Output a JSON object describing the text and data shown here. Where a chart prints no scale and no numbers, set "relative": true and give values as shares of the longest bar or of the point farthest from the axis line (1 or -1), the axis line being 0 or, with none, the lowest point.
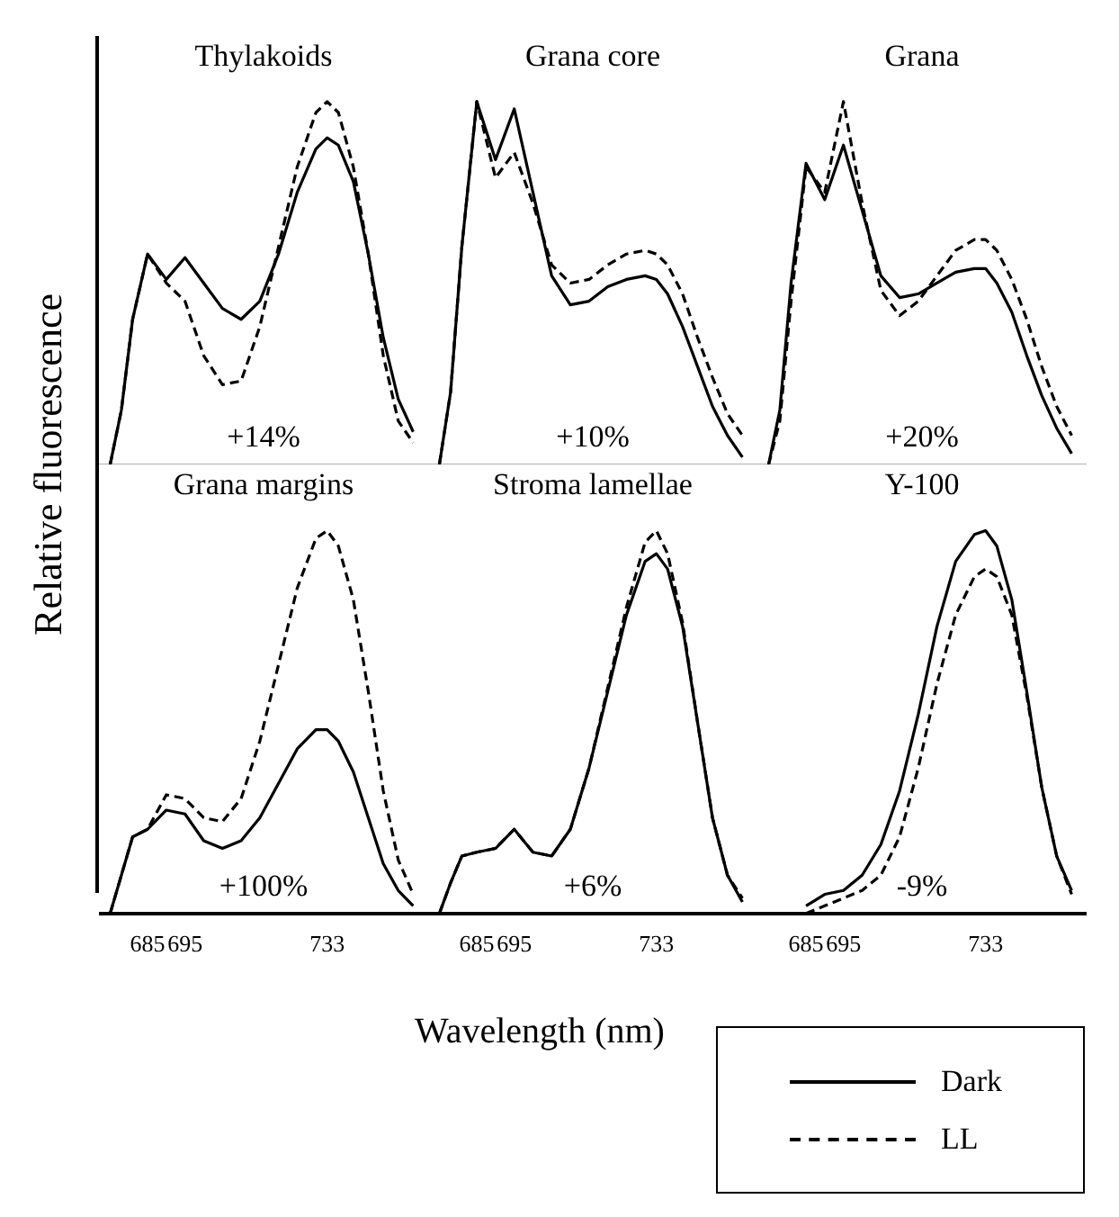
{
  "chart_data": [
    {
      "type": "line",
      "title": "Thylakoids",
      "ylabel": "Relative fluorescence",
      "annotations": [
        "+14%"
      ],
      "relative": true,
      "tick_labels": false,
      "xlim": [
        672,
        760
      ],
      "xticks": [
        685,
        695,
        733
      ],
      "x": [
        675,
        678,
        681,
        685,
        690,
        695,
        700,
        705,
        710,
        715,
        720,
        725,
        730,
        733,
        736,
        740,
        744,
        748,
        752,
        756
      ],
      "series": [
        {
          "color": "#000000",
          "line_style": "solid",
          "values": [
            0,
            0.15,
            0.4,
            0.58,
            0.51,
            0.57,
            0.5,
            0.43,
            0.4,
            0.45,
            0.58,
            0.75,
            0.87,
            0.9,
            0.88,
            0.78,
            0.58,
            0.35,
            0.18,
            0.09
          ]
        },
        {
          "color": "#000000",
          "line_style": "dashed",
          "values": [
            0,
            0.15,
            0.4,
            0.58,
            0.5,
            0.45,
            0.3,
            0.22,
            0.23,
            0.38,
            0.6,
            0.82,
            0.97,
            1,
            0.97,
            0.82,
            0.58,
            0.3,
            0.12,
            0.06
          ]
        }
      ]
    },
    {
      "type": "line",
      "title": "Grana core",
      "annotations": [
        "+10%"
      ],
      "relative": true,
      "tick_labels": false,
      "xlim": [
        672,
        760
      ],
      "xticks": [
        685,
        695,
        733
      ],
      "x": [
        675,
        678,
        681,
        685,
        690,
        695,
        700,
        705,
        710,
        715,
        720,
        725,
        730,
        733,
        736,
        740,
        744,
        748,
        752,
        756
      ],
      "series": [
        {
          "color": "#000000",
          "line_style": "solid",
          "values": [
            0,
            0.2,
            0.6,
            1,
            0.84,
            0.98,
            0.75,
            0.52,
            0.44,
            0.45,
            0.49,
            0.51,
            0.52,
            0.51,
            0.47,
            0.38,
            0.27,
            0.16,
            0.08,
            0.02
          ]
        },
        {
          "color": "#000000",
          "line_style": "dashed",
          "values": [
            0,
            0.2,
            0.6,
            1,
            0.79,
            0.86,
            0.72,
            0.55,
            0.5,
            0.51,
            0.55,
            0.58,
            0.59,
            0.58,
            0.55,
            0.47,
            0.35,
            0.24,
            0.14,
            0.08
          ]
        }
      ]
    },
    {
      "type": "line",
      "title": "Grana",
      "annotations": [
        "+20%"
      ],
      "relative": true,
      "tick_labels": false,
      "xlim": [
        672,
        760
      ],
      "xticks": [
        685,
        695,
        733
      ],
      "x": [
        675,
        678,
        681,
        685,
        690,
        695,
        700,
        705,
        710,
        715,
        720,
        725,
        730,
        733,
        736,
        740,
        744,
        748,
        752,
        756
      ],
      "series": [
        {
          "color": "#000000",
          "line_style": "solid",
          "values": [
            0,
            0.15,
            0.5,
            0.83,
            0.73,
            0.88,
            0.7,
            0.52,
            0.46,
            0.47,
            0.5,
            0.53,
            0.54,
            0.54,
            0.5,
            0.42,
            0.3,
            0.19,
            0.1,
            0.03
          ]
        },
        {
          "color": "#000000",
          "line_style": "dashed",
          "values": [
            0,
            0.12,
            0.45,
            0.82,
            0.75,
            1,
            0.72,
            0.48,
            0.41,
            0.45,
            0.52,
            0.59,
            0.62,
            0.62,
            0.59,
            0.51,
            0.4,
            0.27,
            0.16,
            0.08
          ]
        }
      ]
    },
    {
      "type": "line",
      "title": "Grana margins",
      "annotations": [
        "+100%"
      ],
      "relative": true,
      "tick_labels": "x",
      "xlim": [
        672,
        760
      ],
      "xticks": [
        685,
        695,
        733
      ],
      "x": [
        675,
        678,
        681,
        685,
        690,
        695,
        700,
        705,
        710,
        715,
        720,
        725,
        730,
        733,
        736,
        740,
        744,
        748,
        752,
        756
      ],
      "series": [
        {
          "color": "#000000",
          "line_style": "solid",
          "values": [
            0,
            0.1,
            0.2,
            0.22,
            0.27,
            0.26,
            0.19,
            0.17,
            0.19,
            0.25,
            0.34,
            0.43,
            0.48,
            0.48,
            0.45,
            0.37,
            0.25,
            0.13,
            0.06,
            0.02
          ]
        },
        {
          "color": "#000000",
          "line_style": "dashed",
          "values": [
            0,
            0.1,
            0.2,
            0.22,
            0.31,
            0.3,
            0.25,
            0.24,
            0.3,
            0.45,
            0.65,
            0.85,
            0.98,
            1,
            0.96,
            0.82,
            0.58,
            0.32,
            0.14,
            0.05
          ]
        }
      ]
    },
    {
      "type": "line",
      "title": "Stroma lamellae",
      "xlabel": "Wavelength (nm)",
      "annotations": [
        "+6%"
      ],
      "relative": true,
      "tick_labels": "x",
      "xlim": [
        672,
        760
      ],
      "xticks": [
        685,
        695,
        733
      ],
      "x": [
        675,
        678,
        681,
        685,
        690,
        695,
        700,
        705,
        710,
        715,
        720,
        725,
        730,
        733,
        736,
        740,
        744,
        748,
        752,
        756
      ],
      "series": [
        {
          "color": "#000000",
          "line_style": "solid",
          "values": [
            0,
            0.08,
            0.15,
            0.16,
            0.17,
            0.22,
            0.16,
            0.15,
            0.22,
            0.38,
            0.58,
            0.78,
            0.92,
            0.94,
            0.9,
            0.75,
            0.5,
            0.25,
            0.1,
            0.03
          ]
        },
        {
          "color": "#000000",
          "line_style": "dashed",
          "values": [
            0,
            0.08,
            0.15,
            0.16,
            0.17,
            0.22,
            0.16,
            0.15,
            0.22,
            0.38,
            0.59,
            0.8,
            0.97,
            1,
            0.94,
            0.76,
            0.5,
            0.25,
            0.1,
            0.04
          ]
        }
      ]
    },
    {
      "type": "line",
      "title": "Y-100",
      "annotations": [
        "-9%"
      ],
      "relative": true,
      "tick_labels": "x",
      "legend": "bottom",
      "xlim": [
        672,
        760
      ],
      "xticks": [
        685,
        695,
        733
      ],
      "x": [
        685,
        690,
        695,
        700,
        705,
        710,
        715,
        720,
        725,
        730,
        733,
        736,
        740,
        744,
        748,
        752,
        756
      ],
      "series": [
        {
          "name": "Dark",
          "color": "#000000",
          "line_style": "solid",
          "values": [
            0.02,
            0.05,
            0.06,
            0.1,
            0.18,
            0.32,
            0.52,
            0.75,
            0.92,
            0.99,
            1,
            0.96,
            0.82,
            0.58,
            0.33,
            0.15,
            0.06
          ]
        },
        {
          "name": "LL",
          "color": "#000000",
          "line_style": "dashed",
          "values": [
            0,
            0.02,
            0.04,
            0.06,
            0.1,
            0.2,
            0.38,
            0.6,
            0.78,
            0.88,
            0.9,
            0.88,
            0.78,
            0.57,
            0.33,
            0.15,
            0.05
          ]
        }
      ]
    }
  ]
}
